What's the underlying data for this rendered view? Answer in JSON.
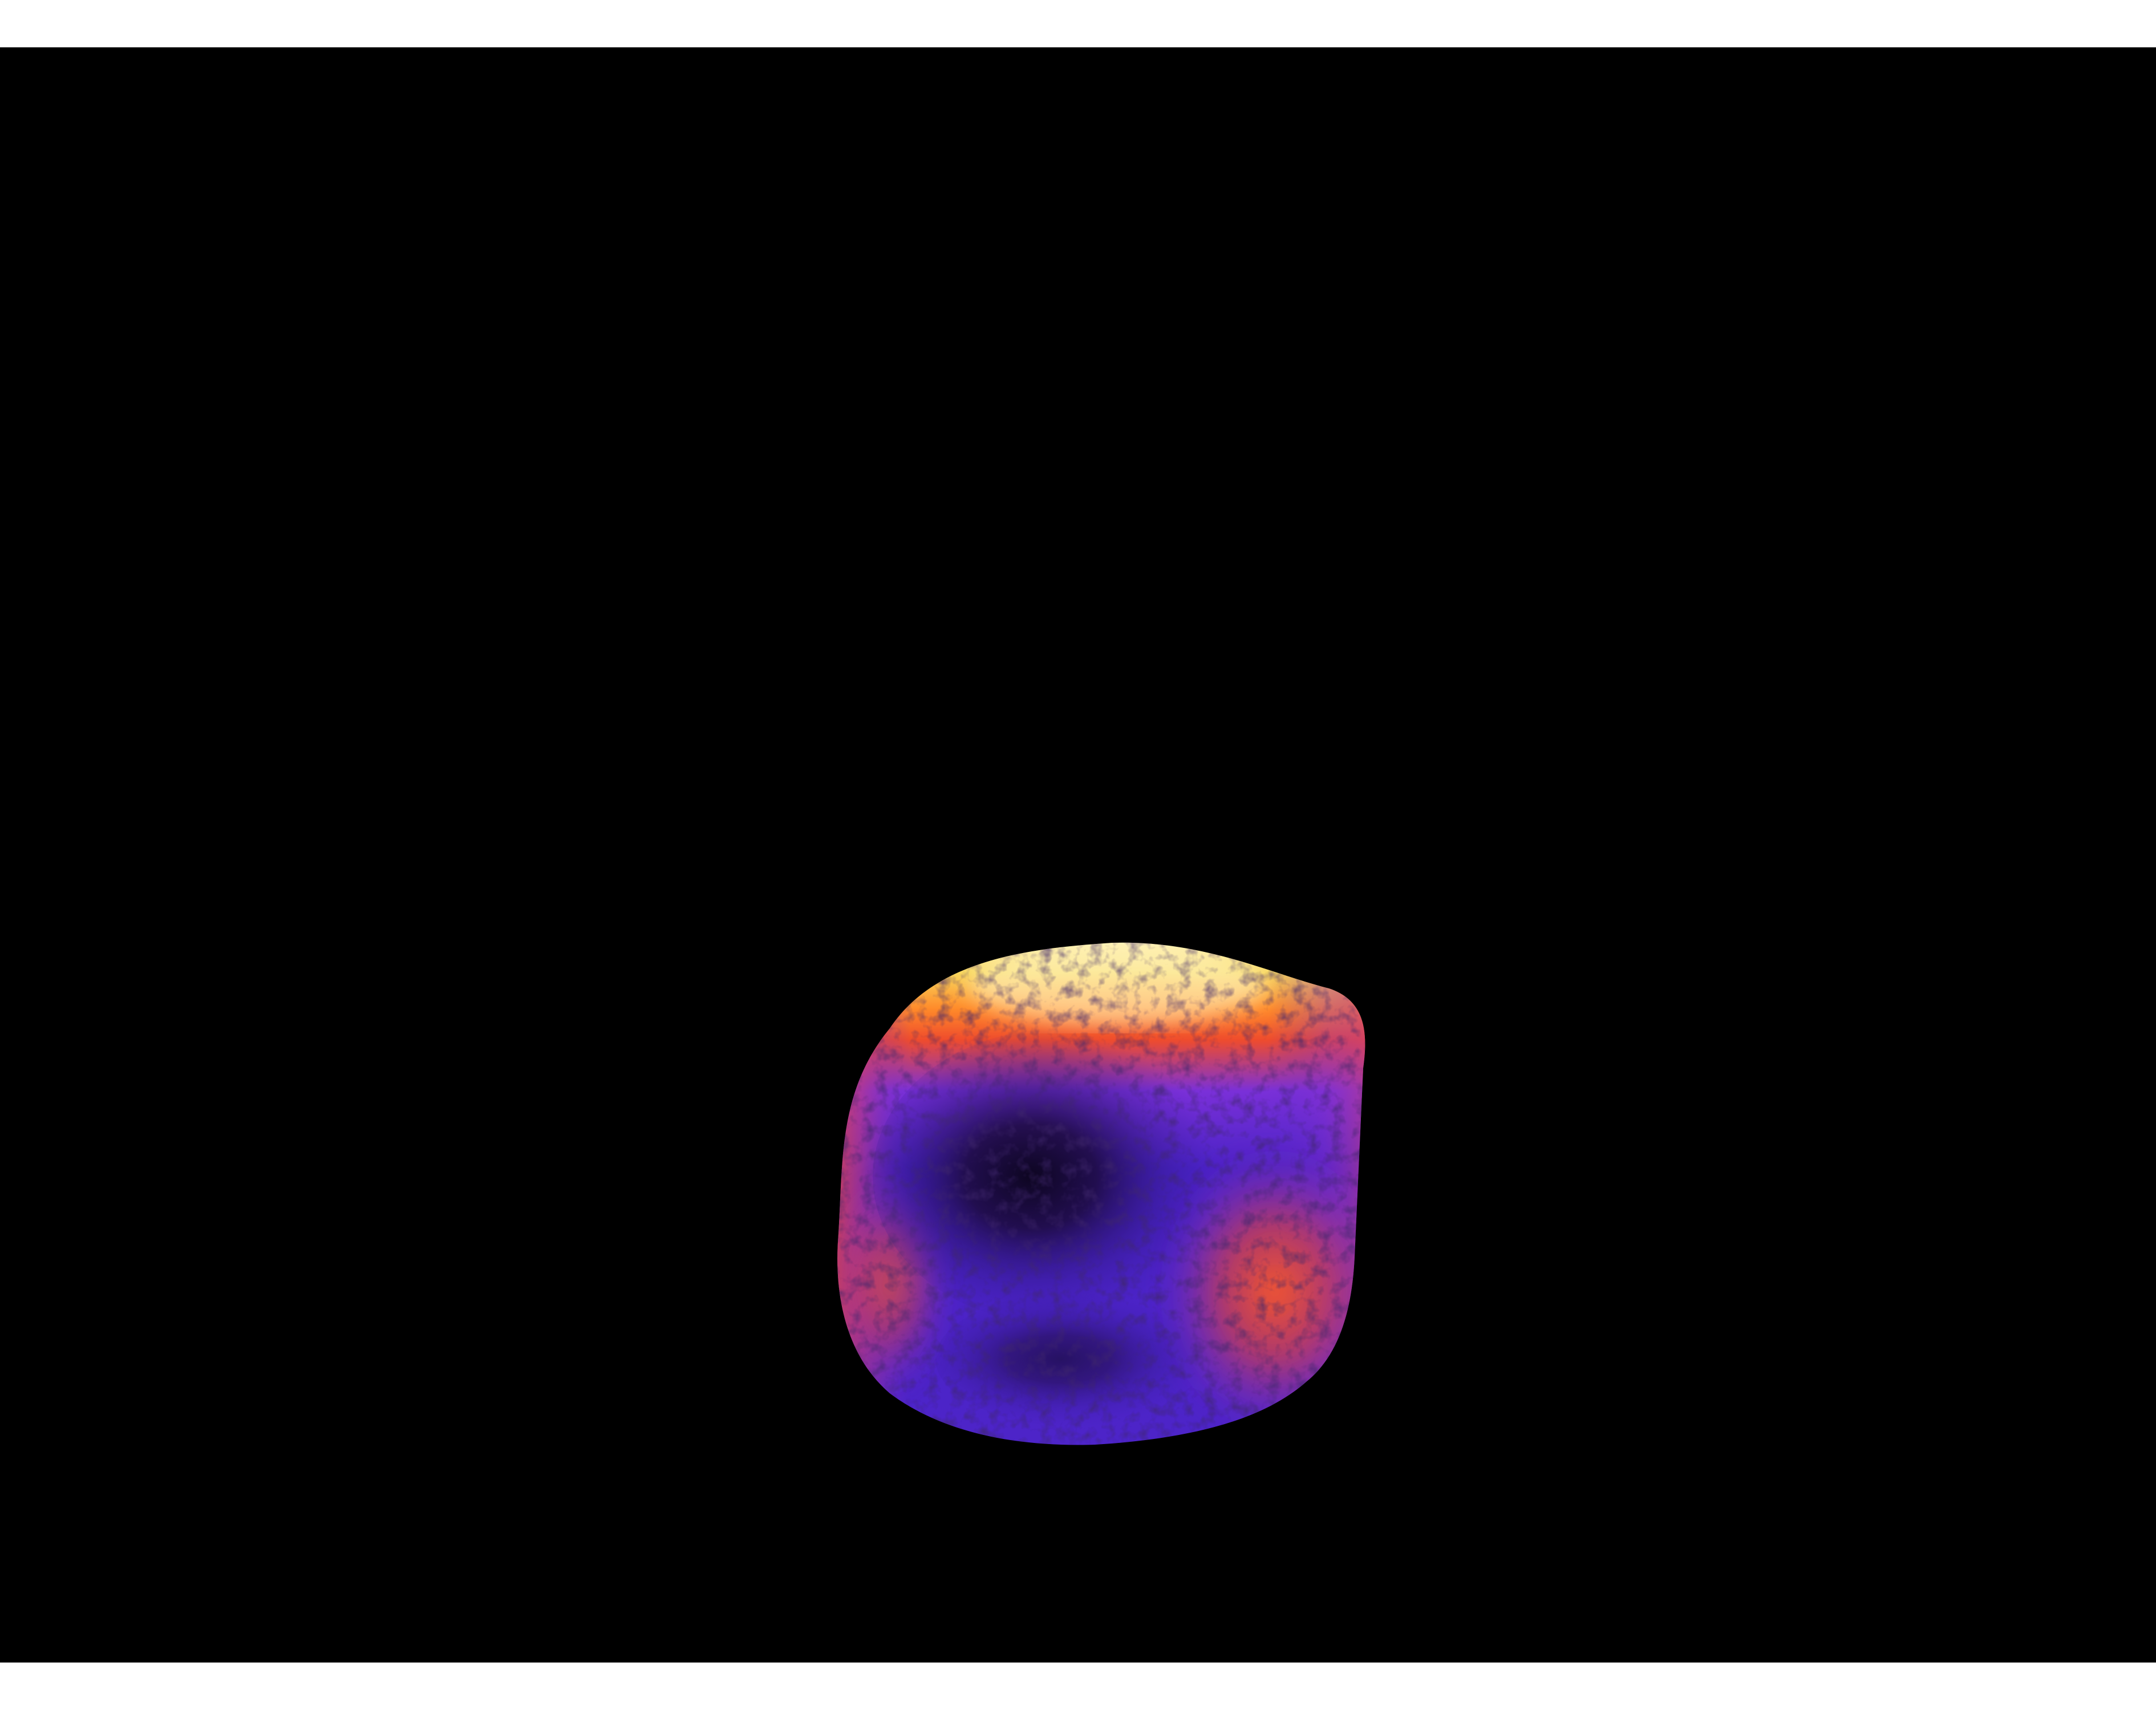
{
  "image": {
    "subject": "thermal-object",
    "colormap": "inferno",
    "colors": {
      "background": "#000000",
      "page": "#ffffff",
      "hot": "#fff4b0",
      "warm_yellow": "#f7c63a",
      "warm_orange": "#ff6a1f",
      "warm_red": "#e8402a",
      "cool_purple": "#5a2bd6",
      "cold_indigo": "#1a0a3a"
    }
  }
}
